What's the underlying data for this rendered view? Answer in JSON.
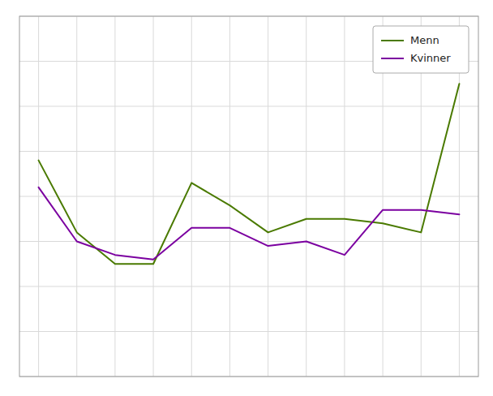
{
  "chart_data": {
    "type": "line",
    "x": [
      0,
      1,
      2,
      3,
      4,
      5,
      6,
      7,
      8,
      9,
      10,
      11
    ],
    "series": [
      {
        "name": "Menn",
        "color": "#4a7a00",
        "values": [
          4.8,
          3.2,
          2.5,
          2.5,
          4.3,
          3.8,
          3.2,
          3.5,
          3.5,
          3.4,
          3.2,
          6.5
        ]
      },
      {
        "name": "Kvinner",
        "color": "#7b00a0",
        "values": [
          4.2,
          3.0,
          2.7,
          2.6,
          3.3,
          3.3,
          2.9,
          3.0,
          2.7,
          3.7,
          3.7,
          3.6
        ]
      }
    ],
    "xlim": [
      -0.5,
      11.5
    ],
    "xticks": [
      0,
      1,
      2,
      3,
      4,
      5,
      6,
      7,
      8,
      9,
      10,
      11
    ],
    "ylim": [
      0.0,
      8.0
    ],
    "yticks": [
      0,
      1,
      2,
      3,
      4,
      5,
      6,
      7,
      8
    ],
    "grid": true,
    "legend": "upper right",
    "tick_labels": false
  }
}
